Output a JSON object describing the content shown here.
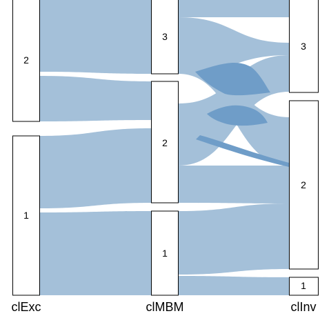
{
  "diagram": {
    "type": "alluvial",
    "axes": [
      {
        "key": "clExc",
        "label": "clExc"
      },
      {
        "key": "clMBM",
        "label": "clMBM"
      },
      {
        "key": "clInv",
        "label": "clInv"
      }
    ],
    "nodes": {
      "clExc": [
        {
          "label": "2"
        },
        {
          "label": "1"
        }
      ],
      "clMBM": [
        {
          "label": "3"
        },
        {
          "label": "2"
        },
        {
          "label": "1"
        }
      ],
      "clInv": [
        {
          "label": "3"
        },
        {
          "label": "2"
        },
        {
          "label": "1"
        }
      ]
    },
    "colors": {
      "flow": "#a4c0d9",
      "flow_overlap": "#6f9dc8",
      "node_fill": "#ffffff",
      "node_stroke": "#000000"
    }
  }
}
